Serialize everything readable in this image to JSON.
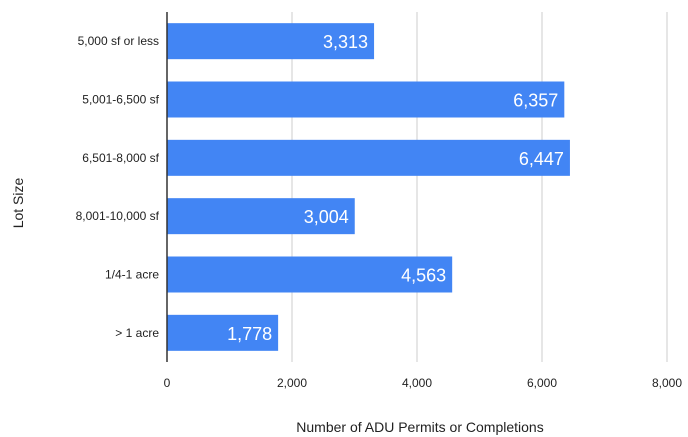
{
  "chart_data": {
    "type": "bar",
    "orientation": "horizontal",
    "categories": [
      "5,000 sf or less",
      "5,001-6,500 sf",
      "6,501-8,000 sf",
      "8,001-10,000 sf",
      "1/4-1 acre",
      "> 1 acre"
    ],
    "values": [
      3313,
      6357,
      6447,
      3004,
      4563,
      1778
    ],
    "data_labels": [
      "3,313",
      "6,357",
      "6,447",
      "3,004",
      "4,563",
      "1,778"
    ],
    "xlabel": "Number of ADU Permits or Completions",
    "ylabel": "Lot Size",
    "xlim": [
      0,
      8000
    ],
    "x_ticks": [
      0,
      2000,
      4000,
      6000,
      8000
    ],
    "x_tick_labels": [
      "0",
      "2,000",
      "4,000",
      "6,000",
      "8,000"
    ],
    "grid": "vertical",
    "legend": "none",
    "colors": {
      "bar": "#4285f4",
      "grid": "#cccccc",
      "axis": "#333333"
    }
  }
}
